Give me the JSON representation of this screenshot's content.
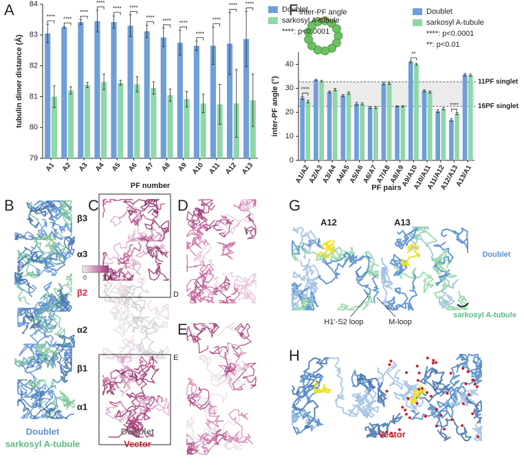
{
  "chart_data": [
    {
      "type": "bar",
      "panel": "A",
      "y_label": "tubulin dimer distance (Å)",
      "x_label": "PF number",
      "categories": [
        "A1",
        "A2",
        "A3",
        "A4",
        "A5",
        "A6",
        "A7",
        "A8",
        "A9",
        "A10",
        "A11",
        "A12",
        "A13"
      ],
      "series": [
        {
          "name": "Doublet",
          "color": "#6f9fd8",
          "values": [
            83.05,
            83.25,
            83.42,
            83.45,
            83.42,
            83.3,
            83.12,
            82.92,
            82.75,
            82.65,
            82.65,
            82.72,
            82.87
          ],
          "errors": [
            0.3,
            0.03,
            0.08,
            0.35,
            0.2,
            0.35,
            0.2,
            0.3,
            0.4,
            0.15,
            0.6,
            1.0,
            0.9
          ]
        },
        {
          "name": "sarkosyl A-tubule",
          "color": "#8fd6a8",
          "values": [
            81.0,
            81.2,
            81.38,
            81.48,
            81.45,
            81.4,
            81.28,
            81.05,
            80.92,
            80.78,
            80.75,
            80.78,
            80.88
          ],
          "errors": [
            0.35,
            0.12,
            0.08,
            0.25,
            0.08,
            0.25,
            0.2,
            0.2,
            0.25,
            0.3,
            0.65,
            1.1,
            0.85
          ]
        }
      ],
      "significance": [
        "****",
        "****",
        "****",
        "****",
        "****",
        "****",
        "****",
        "****",
        "****",
        "****",
        "****",
        "****",
        "****"
      ],
      "significance_legend": [
        "****: p<0.0001"
      ],
      "ylim": [
        79,
        84
      ],
      "yticks": [
        79,
        80,
        81,
        82,
        83,
        84
      ]
    },
    {
      "type": "bar",
      "panel": "F",
      "y_label": "inter-PF angle (°)",
      "x_label": "PF pairs",
      "inset_label": "inter-PF angle",
      "categories": [
        "A1/A2",
        "A2/A3",
        "A3/A4",
        "A4/A5",
        "A5/A6",
        "A6/A7",
        "A7/A8",
        "A8/A9",
        "A9/A10",
        "A10/A11",
        "A11/A12",
        "A12/A13",
        "A13/A1"
      ],
      "series": [
        {
          "name": "Doublet",
          "color": "#6f9fd8",
          "values": [
            26,
            33.5,
            28.5,
            27,
            23.5,
            22,
            32,
            22.5,
            41,
            29,
            20.5,
            16.8,
            35.7
          ],
          "errors": [
            0.6,
            0.3,
            0.4,
            0.4,
            0.6,
            0.4,
            0.5,
            0.3,
            0.3,
            0.4,
            0.6,
            0.6,
            0.5
          ]
        },
        {
          "name": "sarkosyl A-tubule",
          "color": "#8fd6a8",
          "values": [
            24.5,
            33,
            29.5,
            28,
            23.5,
            22,
            32,
            22.5,
            40,
            28.5,
            21.5,
            19.5,
            35.5
          ],
          "errors": [
            0.5,
            0.3,
            0.5,
            0.5,
            0.5,
            0.4,
            0.4,
            0.3,
            0.4,
            0.4,
            0.5,
            0.4,
            0.4
          ]
        }
      ],
      "significance": [
        "****",
        null,
        null,
        null,
        null,
        null,
        null,
        null,
        "**",
        null,
        null,
        "****",
        null
      ],
      "significance_legend": [
        "****: p<0.0001",
        "**: p<0.01"
      ],
      "reference_lines": [
        {
          "value": 32.7,
          "label": "11PF singlet"
        },
        {
          "value": 22.5,
          "label": "16PF singlet"
        }
      ],
      "ylim": [
        0,
        45
      ],
      "yticks": [
        0,
        10,
        20,
        30,
        40
      ]
    }
  ],
  "panels": {
    "B": {
      "letter": "B",
      "labels": [
        "β3",
        "α3",
        "β2",
        "α2",
        "β1",
        "α1"
      ],
      "legend": [
        "Doublet",
        "sarkosyl A-tubule"
      ]
    },
    "C": {
      "letter": "C",
      "colorbar": [
        "0",
        "4 Å"
      ],
      "boxes": [
        "D",
        "E"
      ],
      "legend": [
        "Doublet",
        "Vector"
      ]
    },
    "D": {
      "letter": "D"
    },
    "E": {
      "letter": "E"
    },
    "G": {
      "letter": "G",
      "labels": [
        "A12",
        "A13",
        "Doublet",
        "sarkosyl A-tubule",
        "H1'-S2 loop",
        "M-loop"
      ]
    },
    "H": {
      "letter": "H",
      "labels": [
        "Vector"
      ]
    }
  }
}
